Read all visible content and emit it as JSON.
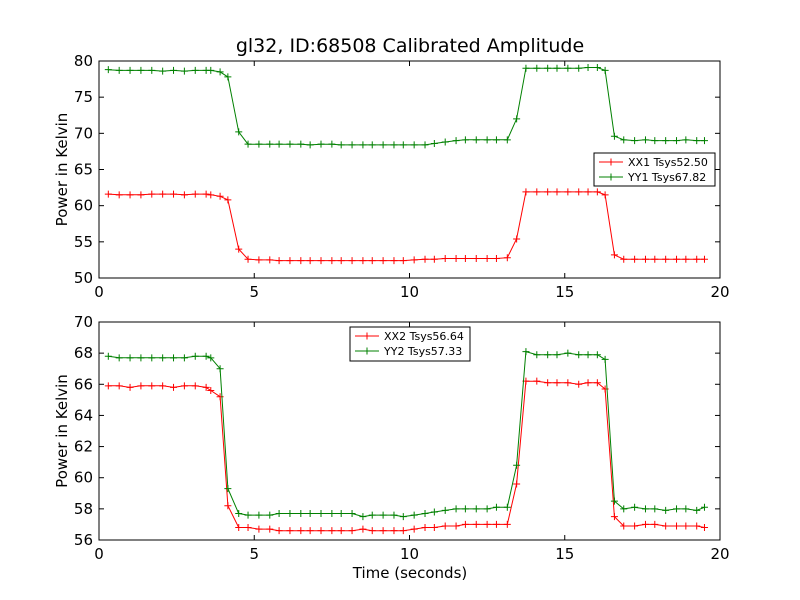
{
  "figure": {
    "title": "gl32, ID:68508 Calibrated Amplitude",
    "xlabel": "Time (seconds)"
  },
  "chart_data": [
    {
      "type": "line",
      "ylabel": "Power in Kelvin",
      "xlim": [
        0,
        20
      ],
      "ylim": [
        50,
        80
      ],
      "xticks": [
        0,
        5,
        10,
        15,
        20
      ],
      "yticks": [
        50,
        55,
        60,
        65,
        70,
        75,
        80
      ],
      "legend_position": "center-right",
      "x": [
        0.3,
        0.65,
        1.0,
        1.35,
        1.7,
        2.05,
        2.4,
        2.75,
        3.1,
        3.45,
        3.6,
        3.9,
        4.15,
        4.5,
        4.8,
        5.15,
        5.5,
        5.8,
        6.15,
        6.5,
        6.8,
        7.15,
        7.5,
        7.8,
        8.15,
        8.5,
        8.8,
        9.15,
        9.5,
        9.8,
        10.15,
        10.5,
        10.8,
        11.15,
        11.5,
        11.8,
        12.15,
        12.5,
        12.8,
        13.15,
        13.45,
        13.75,
        14.1,
        14.45,
        14.75,
        15.1,
        15.45,
        15.75,
        16.05,
        16.3,
        16.6,
        16.9,
        17.25,
        17.6,
        17.9,
        18.25,
        18.6,
        18.9,
        19.25,
        19.5
      ],
      "series": [
        {
          "name": "XX1 Tsys52.50",
          "color": "#ff0000",
          "values": [
            61.6,
            61.5,
            61.5,
            61.5,
            61.6,
            61.6,
            61.6,
            61.5,
            61.6,
            61.6,
            61.5,
            61.3,
            60.8,
            54.0,
            52.6,
            52.5,
            52.5,
            52.4,
            52.4,
            52.4,
            52.4,
            52.4,
            52.4,
            52.4,
            52.4,
            52.4,
            52.4,
            52.4,
            52.4,
            52.4,
            52.5,
            52.6,
            52.6,
            52.7,
            52.7,
            52.7,
            52.7,
            52.7,
            52.7,
            52.8,
            55.4,
            61.9,
            61.9,
            61.9,
            61.9,
            61.9,
            61.9,
            61.9,
            61.9,
            61.5,
            53.2,
            52.6,
            52.6,
            52.6,
            52.6,
            52.6,
            52.6,
            52.6,
            52.6,
            52.6
          ]
        },
        {
          "name": "YY1 Tsys67.82",
          "color": "#008000",
          "values": [
            78.8,
            78.7,
            78.7,
            78.7,
            78.7,
            78.6,
            78.7,
            78.6,
            78.7,
            78.7,
            78.7,
            78.5,
            77.8,
            70.2,
            68.5,
            68.5,
            68.5,
            68.5,
            68.5,
            68.5,
            68.4,
            68.5,
            68.5,
            68.4,
            68.4,
            68.4,
            68.4,
            68.4,
            68.4,
            68.4,
            68.4,
            68.4,
            68.6,
            68.8,
            69.0,
            69.1,
            69.1,
            69.1,
            69.1,
            69.1,
            72.0,
            79.0,
            79.0,
            79.0,
            79.0,
            79.0,
            79.0,
            79.1,
            79.1,
            78.7,
            69.6,
            69.1,
            69.0,
            69.1,
            69.0,
            69.0,
            69.0,
            69.1,
            69.0,
            69.0
          ]
        }
      ]
    },
    {
      "type": "line",
      "ylabel": "Power in Kelvin",
      "xlim": [
        0,
        20
      ],
      "ylim": [
        56,
        70
      ],
      "xticks": [
        0,
        5,
        10,
        15,
        20
      ],
      "yticks": [
        56,
        58,
        60,
        62,
        64,
        66,
        68,
        70
      ],
      "legend_position": "upper-center",
      "x": [
        0.3,
        0.65,
        1.0,
        1.35,
        1.7,
        2.05,
        2.4,
        2.75,
        3.1,
        3.45,
        3.6,
        3.9,
        4.15,
        4.5,
        4.8,
        5.15,
        5.5,
        5.8,
        6.15,
        6.5,
        6.8,
        7.15,
        7.5,
        7.8,
        8.15,
        8.5,
        8.8,
        9.15,
        9.5,
        9.8,
        10.15,
        10.5,
        10.8,
        11.15,
        11.5,
        11.8,
        12.15,
        12.5,
        12.8,
        13.15,
        13.45,
        13.75,
        14.1,
        14.45,
        14.75,
        15.1,
        15.45,
        15.75,
        16.05,
        16.3,
        16.6,
        16.9,
        17.25,
        17.6,
        17.9,
        18.25,
        18.6,
        18.9,
        19.25,
        19.5
      ],
      "series": [
        {
          "name": "XX2 Tsys56.64",
          "color": "#ff0000",
          "values": [
            65.9,
            65.9,
            65.8,
            65.9,
            65.9,
            65.9,
            65.8,
            65.9,
            65.9,
            65.8,
            65.6,
            65.2,
            58.2,
            56.8,
            56.8,
            56.7,
            56.7,
            56.6,
            56.6,
            56.6,
            56.6,
            56.6,
            56.6,
            56.6,
            56.6,
            56.7,
            56.6,
            56.6,
            56.6,
            56.6,
            56.7,
            56.8,
            56.8,
            56.9,
            56.9,
            57.0,
            57.0,
            57.0,
            57.0,
            57.0,
            59.6,
            66.2,
            66.2,
            66.1,
            66.1,
            66.1,
            66.0,
            66.1,
            66.1,
            65.7,
            57.5,
            56.9,
            56.9,
            57.0,
            57.0,
            56.9,
            56.9,
            56.9,
            56.9,
            56.8
          ]
        },
        {
          "name": "YY2 Tsys57.33",
          "color": "#008000",
          "values": [
            67.8,
            67.7,
            67.7,
            67.7,
            67.7,
            67.7,
            67.7,
            67.7,
            67.8,
            67.8,
            67.7,
            67.0,
            59.3,
            57.7,
            57.6,
            57.6,
            57.6,
            57.7,
            57.7,
            57.7,
            57.7,
            57.7,
            57.7,
            57.7,
            57.7,
            57.5,
            57.6,
            57.6,
            57.6,
            57.5,
            57.6,
            57.7,
            57.8,
            57.9,
            58.0,
            58.0,
            58.0,
            58.0,
            58.1,
            58.1,
            60.8,
            68.1,
            67.9,
            67.9,
            67.9,
            68.0,
            67.9,
            67.9,
            67.9,
            67.6,
            58.5,
            58.0,
            58.1,
            58.0,
            58.0,
            57.9,
            58.0,
            58.0,
            57.9,
            58.1
          ]
        }
      ]
    }
  ]
}
